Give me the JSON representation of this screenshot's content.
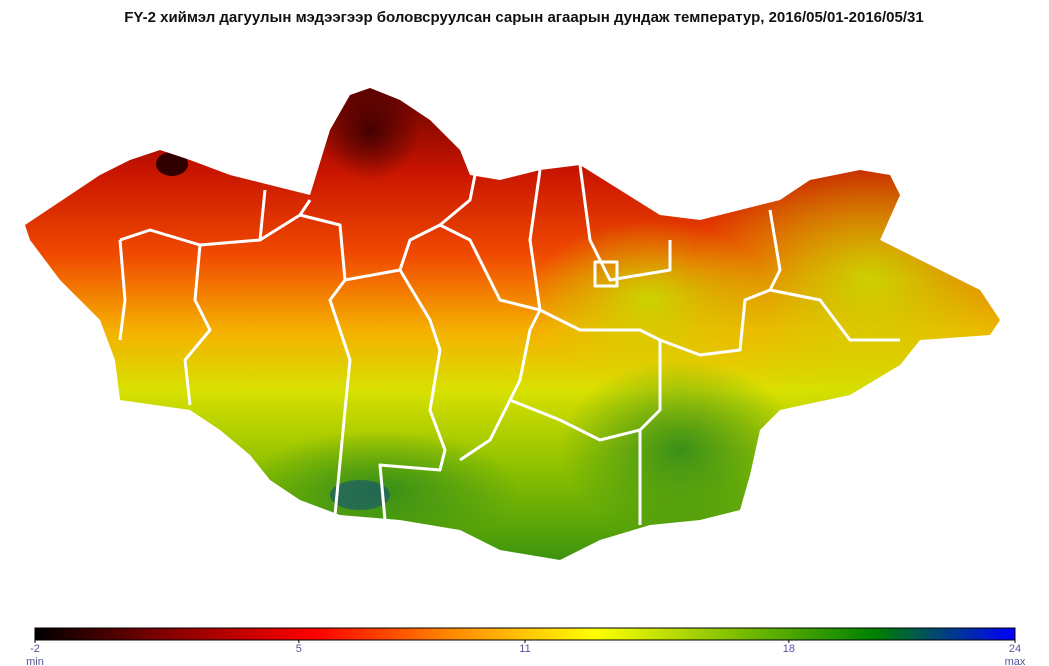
{
  "title": "FY-2 хиймэл дагуулын мэдээгээр боловсруулсан сарын агаарын дундаж температур, 2016/05/01-2016/05/31",
  "colorbar": {
    "lim": [
      -2,
      24
    ],
    "ticks": [
      -2,
      5,
      11,
      18,
      24
    ],
    "min_label": "min",
    "max_label": "max",
    "colors": [
      "#000000",
      "#8b0000",
      "#ff0000",
      "#ff8c00",
      "#ffff00",
      "#7fbf00",
      "#008000",
      "#0000ff"
    ]
  }
}
